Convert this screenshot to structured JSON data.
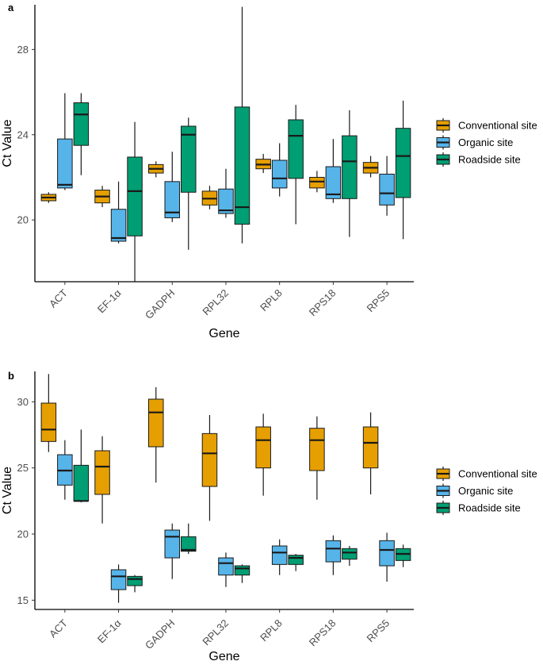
{
  "chart_data": [
    {
      "type": "boxplot",
      "panel_label": "a",
      "xlabel": "Gene",
      "ylabel": "Ct Value",
      "ylim": [
        17.1,
        30.1
      ],
      "yticks": [
        20,
        24,
        28
      ],
      "categories": [
        "ACT",
        "EF-1α",
        "GADPH",
        "RPL32",
        "RPL8",
        "RPS18",
        "RPS5"
      ],
      "legend": [
        "Conventional site",
        "Organic site",
        "Roadside site"
      ],
      "colors": [
        "#E69F00",
        "#56B4E9",
        "#009E73"
      ],
      "series": [
        {
          "name": "Conventional site",
          "boxes": [
            {
              "min": 20.8,
              "q1": 20.9,
              "median": 21.05,
              "q3": 21.2,
              "max": 21.3
            },
            {
              "min": 20.6,
              "q1": 20.8,
              "median": 21.1,
              "q3": 21.4,
              "max": 21.6
            },
            {
              "min": 22.0,
              "q1": 22.2,
              "median": 22.4,
              "q3": 22.6,
              "max": 22.75
            },
            {
              "min": 20.5,
              "q1": 20.7,
              "median": 21.0,
              "q3": 21.35,
              "max": 21.6
            },
            {
              "min": 22.2,
              "q1": 22.4,
              "median": 22.6,
              "q3": 22.85,
              "max": 23.1
            },
            {
              "min": 21.3,
              "q1": 21.5,
              "median": 21.8,
              "q3": 22.0,
              "max": 22.3
            },
            {
              "min": 22.0,
              "q1": 22.2,
              "median": 22.45,
              "q3": 22.7,
              "max": 23.0
            }
          ]
        },
        {
          "name": "Organic site",
          "boxes": [
            {
              "min": 21.4,
              "q1": 21.5,
              "median": 21.65,
              "q3": 23.8,
              "max": 25.95
            },
            {
              "min": 18.9,
              "q1": 19.0,
              "median": 19.15,
              "q3": 20.5,
              "max": 21.8
            },
            {
              "min": 19.9,
              "q1": 20.1,
              "median": 20.35,
              "q3": 21.8,
              "max": 23.2
            },
            {
              "min": 20.1,
              "q1": 20.3,
              "median": 20.45,
              "q3": 21.45,
              "max": 22.4
            },
            {
              "min": 21.1,
              "q1": 21.5,
              "median": 21.95,
              "q3": 22.8,
              "max": 23.6
            },
            {
              "min": 20.8,
              "q1": 21.0,
              "median": 21.2,
              "q3": 22.5,
              "max": 23.8
            },
            {
              "min": 20.2,
              "q1": 20.7,
              "median": 21.25,
              "q3": 22.15,
              "max": 23.0
            }
          ]
        },
        {
          "name": "Roadside site",
          "boxes": [
            {
              "min": 22.1,
              "q1": 23.5,
              "median": 24.95,
              "q3": 25.5,
              "max": 25.95
            },
            {
              "min": 17.1,
              "q1": 19.25,
              "median": 21.35,
              "q3": 22.95,
              "max": 24.6
            },
            {
              "min": 18.6,
              "q1": 21.3,
              "median": 24.0,
              "q3": 24.4,
              "max": 24.8
            },
            {
              "min": 18.9,
              "q1": 19.8,
              "median": 20.6,
              "q3": 25.3,
              "max": 30.0
            },
            {
              "min": 19.8,
              "q1": 21.95,
              "median": 23.95,
              "q3": 24.7,
              "max": 25.4
            },
            {
              "min": 19.2,
              "q1": 21.0,
              "median": 22.75,
              "q3": 23.95,
              "max": 25.15
            },
            {
              "min": 19.1,
              "q1": 21.05,
              "median": 23.0,
              "q3": 24.3,
              "max": 25.6
            }
          ]
        }
      ]
    },
    {
      "type": "boxplot",
      "panel_label": "b",
      "xlabel": "Gene",
      "ylabel": "Ct Value",
      "ylim": [
        14.3,
        32.3
      ],
      "yticks": [
        15,
        20,
        25,
        30
      ],
      "categories": [
        "ACT",
        "EF-1α",
        "GADPH",
        "RPL32",
        "RPL8",
        "RPS18",
        "RPS5"
      ],
      "legend": [
        "Conventional site",
        "Organic site",
        "Roadside site"
      ],
      "colors": [
        "#E69F00",
        "#56B4E9",
        "#009E73"
      ],
      "series": [
        {
          "name": "Conventional site",
          "boxes": [
            {
              "min": 26.2,
              "q1": 27.0,
              "median": 27.9,
              "q3": 29.9,
              "max": 32.1
            },
            {
              "min": 20.8,
              "q1": 23.0,
              "median": 25.1,
              "q3": 26.3,
              "max": 27.4
            },
            {
              "min": 23.9,
              "q1": 26.6,
              "median": 29.2,
              "q3": 30.2,
              "max": 31.1
            },
            {
              "min": 21.0,
              "q1": 23.6,
              "median": 26.1,
              "q3": 27.6,
              "max": 29.0
            },
            {
              "min": 22.9,
              "q1": 25.0,
              "median": 27.1,
              "q3": 28.1,
              "max": 29.1
            },
            {
              "min": 22.6,
              "q1": 24.8,
              "median": 27.1,
              "q3": 28.0,
              "max": 28.9
            },
            {
              "min": 23.0,
              "q1": 25.0,
              "median": 26.9,
              "q3": 28.1,
              "max": 29.2
            }
          ]
        },
        {
          "name": "Organic site",
          "boxes": [
            {
              "min": 22.6,
              "q1": 23.7,
              "median": 24.8,
              "q3": 26.0,
              "max": 27.1
            },
            {
              "min": 14.8,
              "q1": 15.8,
              "median": 16.8,
              "q3": 17.3,
              "max": 17.7
            },
            {
              "min": 16.6,
              "q1": 18.2,
              "median": 19.8,
              "q3": 20.3,
              "max": 20.8
            },
            {
              "min": 16.0,
              "q1": 16.9,
              "median": 17.8,
              "q3": 18.2,
              "max": 18.6
            },
            {
              "min": 16.9,
              "q1": 17.7,
              "median": 18.6,
              "q3": 19.1,
              "max": 19.6
            },
            {
              "min": 16.9,
              "q1": 17.9,
              "median": 18.9,
              "q3": 19.5,
              "max": 19.9
            },
            {
              "min": 16.4,
              "q1": 17.6,
              "median": 18.8,
              "q3": 19.5,
              "max": 20.1
            }
          ]
        },
        {
          "name": "Roadside site",
          "boxes": [
            {
              "min": 22.4,
              "q1": 22.5,
              "median": 22.5,
              "q3": 25.2,
              "max": 27.9
            },
            {
              "min": 15.6,
              "q1": 16.1,
              "median": 16.6,
              "q3": 16.8,
              "max": 16.9
            },
            {
              "min": 18.5,
              "q1": 18.7,
              "median": 18.8,
              "q3": 19.8,
              "max": 20.8
            },
            {
              "min": 16.3,
              "q1": 16.9,
              "median": 17.4,
              "q3": 17.6,
              "max": 17.7
            },
            {
              "min": 17.2,
              "q1": 17.7,
              "median": 18.2,
              "q3": 18.4,
              "max": 18.5
            },
            {
              "min": 17.6,
              "q1": 18.1,
              "median": 18.6,
              "q3": 18.9,
              "max": 19.1
            },
            {
              "min": 17.5,
              "q1": 18.0,
              "median": 18.5,
              "q3": 18.9,
              "max": 19.2
            }
          ]
        }
      ]
    }
  ]
}
